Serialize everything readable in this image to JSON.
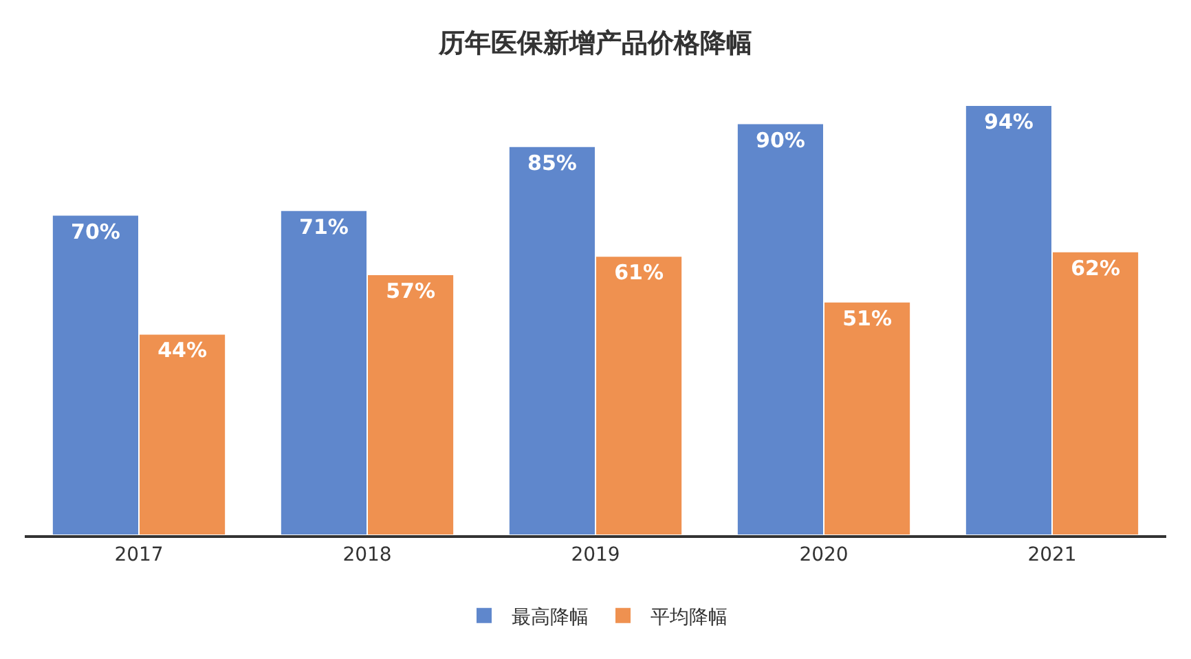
{
  "chart_data": {
    "type": "bar",
    "title": "历年医保新增产品价格降幅",
    "categories": [
      "2017",
      "2018",
      "2019",
      "2020",
      "2021"
    ],
    "series": [
      {
        "name": "最高降幅",
        "color": "#5f87cc",
        "values": [
          70,
          71,
          85,
          90,
          94
        ],
        "value_labels": [
          "70%",
          "71%",
          "85%",
          "90%",
          "94%"
        ]
      },
      {
        "name": "平均降幅",
        "color": "#ef9150",
        "values": [
          44,
          57,
          61,
          51,
          62
        ],
        "value_labels": [
          "44%",
          "57%",
          "61%",
          "51%",
          "62%"
        ]
      }
    ],
    "legend": "bottom"
  }
}
